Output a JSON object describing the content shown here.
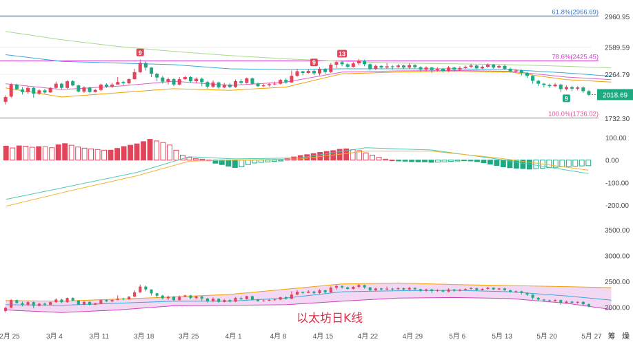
{
  "chart_data": [
    {
      "type": "candlestick",
      "xlabel": "",
      "ylabel": "",
      "x_ticks": [
        "2月 25",
        "3月 4",
        "3月 11",
        "3月 18",
        "3月 25",
        "4月 1",
        "4月 8",
        "4月 15",
        "4月 22",
        "4月 29",
        "5月 6",
        "5月 13",
        "5月 20",
        "5月 27"
      ],
      "y_ticks": [
        "2960.95",
        "2589.59",
        "2264.79",
        "2018.69",
        "1732.30"
      ],
      "ylim": [
        1732.3,
        2960.95
      ],
      "current_price_label": "2018.69",
      "fib_levels": [
        {
          "label": "61.8%(2966.69)",
          "value": 2966.69,
          "color": "#3a78c9"
        },
        {
          "label": "78.6%(2425.45)",
          "value": 2425.45,
          "color": "#d23ad2"
        },
        {
          "label": "100.0%(1736.02)",
          "value": 1736.02,
          "color": "#e0509a"
        }
      ],
      "markers": [
        {
          "text": "9",
          "index": 24,
          "position": "above",
          "color": "#e2445a"
        },
        {
          "text": "9",
          "index": 55,
          "position": "above",
          "color": "#e2445a"
        },
        {
          "text": "13",
          "index": 60,
          "position": "above",
          "color": "#e2445a"
        },
        {
          "text": "9",
          "index": 100,
          "position": "below",
          "color": "#1ea982"
        }
      ],
      "moving_averages": [
        {
          "color": "#f2a000",
          "points": [
            [
              0,
              2100
            ],
            [
              10,
              1990
            ],
            [
              20,
              2040
            ],
            [
              30,
              2090
            ],
            [
              40,
              2070
            ],
            [
              50,
              2110
            ],
            [
              60,
              2270
            ],
            [
              70,
              2290
            ],
            [
              80,
              2300
            ],
            [
              90,
              2290
            ],
            [
              100,
              2200
            ],
            [
              108,
              2170
            ]
          ]
        },
        {
          "color": "#e060c8",
          "points": [
            [
              0,
              2150
            ],
            [
              10,
              2080
            ],
            [
              20,
              2120
            ],
            [
              30,
              2180
            ],
            [
              40,
              2130
            ],
            [
              50,
              2170
            ],
            [
              60,
              2290
            ],
            [
              70,
              2305
            ],
            [
              80,
              2310
            ],
            [
              90,
              2300
            ],
            [
              100,
              2230
            ],
            [
              108,
              2200
            ]
          ]
        },
        {
          "color": "#3aa8d8",
          "points": [
            [
              0,
              2500
            ],
            [
              10,
              2420
            ],
            [
              20,
              2400
            ],
            [
              30,
              2380
            ],
            [
              40,
              2330
            ],
            [
              50,
              2320
            ],
            [
              60,
              2330
            ],
            [
              70,
              2330
            ],
            [
              80,
              2330
            ],
            [
              90,
              2320
            ],
            [
              100,
              2280
            ],
            [
              108,
              2240
            ]
          ]
        },
        {
          "color": "#a8d88a",
          "points": [
            [
              0,
              2780
            ],
            [
              10,
              2680
            ],
            [
              20,
              2600
            ],
            [
              30,
              2540
            ],
            [
              40,
              2490
            ],
            [
              50,
              2450
            ],
            [
              60,
              2420
            ],
            [
              70,
              2400
            ],
            [
              80,
              2390
            ],
            [
              90,
              2380
            ],
            [
              100,
              2360
            ],
            [
              108,
              2340
            ]
          ]
        }
      ],
      "ohlc": [
        [
          1930,
          1990,
          2010,
          1900
        ],
        [
          1995,
          2140,
          2160,
          1980
        ],
        [
          2140,
          2085,
          2150,
          2070
        ],
        [
          2080,
          2050,
          2110,
          2020
        ],
        [
          2050,
          2100,
          2120,
          2030
        ],
        [
          2100,
          2030,
          2110,
          1980
        ],
        [
          2030,
          2070,
          2085,
          2015
        ],
        [
          2070,
          2045,
          2090,
          2030
        ],
        [
          2045,
          2100,
          2110,
          2040
        ],
        [
          2100,
          2150,
          2175,
          2090
        ],
        [
          2150,
          2100,
          2160,
          2080
        ],
        [
          2100,
          2180,
          2190,
          2090
        ],
        [
          2180,
          2130,
          2195,
          2120
        ],
        [
          2130,
          2055,
          2140,
          2045
        ],
        [
          2055,
          2105,
          2120,
          2040
        ],
        [
          2105,
          2050,
          2115,
          2035
        ],
        [
          2050,
          2075,
          2090,
          2045
        ],
        [
          2075,
          2140,
          2150,
          2060
        ],
        [
          2140,
          2115,
          2155,
          2100
        ],
        [
          2115,
          2140,
          2160,
          2100
        ],
        [
          2140,
          2170,
          2230,
          2140
        ],
        [
          2170,
          2155,
          2185,
          2135
        ],
        [
          2155,
          2205,
          2215,
          2145
        ],
        [
          2205,
          2290,
          2330,
          2200
        ],
        [
          2290,
          2400,
          2440,
          2280
        ],
        [
          2400,
          2345,
          2420,
          2310
        ],
        [
          2345,
          2270,
          2350,
          2230
        ],
        [
          2270,
          2225,
          2280,
          2180
        ],
        [
          2225,
          2175,
          2245,
          2150
        ],
        [
          2175,
          2205,
          2225,
          2140
        ],
        [
          2205,
          2140,
          2220,
          2120
        ],
        [
          2140,
          2205,
          2230,
          2130
        ],
        [
          2205,
          2230,
          2245,
          2195
        ],
        [
          2230,
          2180,
          2240,
          2160
        ],
        [
          2180,
          2210,
          2225,
          2160
        ],
        [
          2210,
          2170,
          2225,
          2120
        ],
        [
          2170,
          2115,
          2185,
          2090
        ],
        [
          2115,
          2165,
          2190,
          2100
        ],
        [
          2165,
          2105,
          2175,
          2090
        ],
        [
          2105,
          2140,
          2160,
          2095
        ],
        [
          2140,
          2110,
          2160,
          2095
        ],
        [
          2110,
          2180,
          2200,
          2100
        ],
        [
          2180,
          2160,
          2205,
          2140
        ],
        [
          2160,
          2215,
          2225,
          2145
        ],
        [
          2215,
          2150,
          2225,
          2135
        ],
        [
          2150,
          2120,
          2165,
          2110
        ],
        [
          2120,
          2130,
          2150,
          2110
        ],
        [
          2130,
          2145,
          2160,
          2115
        ],
        [
          2145,
          2150,
          2175,
          2130
        ],
        [
          2150,
          2195,
          2205,
          2140
        ],
        [
          2195,
          2165,
          2215,
          2150
        ],
        [
          2165,
          2245,
          2310,
          2160
        ],
        [
          2245,
          2300,
          2330,
          2235
        ],
        [
          2300,
          2280,
          2305,
          2250
        ],
        [
          2280,
          2305,
          2330,
          2270
        ],
        [
          2305,
          2275,
          2320,
          2255
        ],
        [
          2275,
          2330,
          2350,
          2250
        ],
        [
          2330,
          2290,
          2340,
          2270
        ],
        [
          2290,
          2380,
          2400,
          2280
        ],
        [
          2380,
          2410,
          2430,
          2340
        ],
        [
          2410,
          2385,
          2425,
          2360
        ],
        [
          2385,
          2355,
          2400,
          2340
        ],
        [
          2355,
          2395,
          2410,
          2345
        ],
        [
          2395,
          2430,
          2450,
          2375
        ],
        [
          2430,
          2385,
          2440,
          2360
        ],
        [
          2385,
          2330,
          2395,
          2310
        ],
        [
          2330,
          2365,
          2380,
          2315
        ],
        [
          2365,
          2345,
          2375,
          2325
        ],
        [
          2345,
          2360,
          2400,
          2330
        ],
        [
          2360,
          2350,
          2375,
          2320
        ],
        [
          2350,
          2370,
          2385,
          2340
        ],
        [
          2370,
          2345,
          2380,
          2325
        ],
        [
          2345,
          2375,
          2395,
          2330
        ],
        [
          2375,
          2350,
          2385,
          2330
        ],
        [
          2350,
          2320,
          2360,
          2295
        ],
        [
          2320,
          2345,
          2360,
          2300
        ],
        [
          2345,
          2315,
          2355,
          2280
        ],
        [
          2315,
          2330,
          2350,
          2300
        ],
        [
          2330,
          2305,
          2340,
          2285
        ],
        [
          2305,
          2345,
          2365,
          2290
        ],
        [
          2345,
          2320,
          2355,
          2300
        ],
        [
          2320,
          2340,
          2360,
          2305
        ],
        [
          2340,
          2355,
          2370,
          2325
        ],
        [
          2355,
          2370,
          2390,
          2340
        ],
        [
          2370,
          2335,
          2380,
          2320
        ],
        [
          2335,
          2355,
          2370,
          2325
        ],
        [
          2355,
          2380,
          2395,
          2340
        ],
        [
          2380,
          2345,
          2385,
          2330
        ],
        [
          2345,
          2365,
          2375,
          2335
        ],
        [
          2365,
          2330,
          2380,
          2315
        ],
        [
          2330,
          2300,
          2345,
          2285
        ],
        [
          2300,
          2310,
          2325,
          2280
        ],
        [
          2310,
          2280,
          2320,
          2250
        ],
        [
          2280,
          2245,
          2290,
          2220
        ],
        [
          2245,
          2185,
          2250,
          2150
        ],
        [
          2185,
          2150,
          2195,
          2120
        ],
        [
          2150,
          2135,
          2160,
          2105
        ],
        [
          2135,
          2120,
          2150,
          2100
        ],
        [
          2120,
          2140,
          2160,
          2110
        ],
        [
          2140,
          2085,
          2150,
          2050
        ],
        [
          2085,
          2110,
          2130,
          2070
        ],
        [
          2110,
          2090,
          2125,
          2060
        ],
        [
          2090,
          2105,
          2120,
          2070
        ],
        [
          2105,
          2060,
          2120,
          2040
        ],
        [
          2060,
          2018,
          2075,
          2000
        ]
      ]
    },
    {
      "type": "bar",
      "y_ticks": [
        "100.00",
        "0.00",
        "-100.00",
        "-200.00"
      ],
      "ylim": [
        -200,
        100
      ],
      "values": [
        62,
        54,
        63,
        62,
        57,
        60,
        59,
        55,
        68,
        73,
        66,
        58,
        53,
        50,
        47,
        44,
        44,
        52,
        60,
        66,
        72,
        82,
        92,
        85,
        78,
        67,
        44,
        22,
        12,
        6,
        4,
        0,
        -14,
        -20,
        -27,
        -33,
        -30,
        -20,
        -13,
        -10,
        -8,
        -6,
        -4,
        6,
        14,
        20,
        24,
        29,
        34,
        38,
        42,
        48,
        50,
        46,
        42,
        32,
        22,
        12,
        4,
        0,
        -4,
        -5,
        -7,
        -8,
        -8,
        -10,
        -9,
        -8,
        -6,
        -4,
        -2,
        -4,
        -7,
        -12,
        -18,
        -24,
        -30,
        -34,
        -36,
        -38,
        -40,
        -38,
        -36,
        -34,
        -32,
        -30,
        -28,
        -27,
        -26,
        -25
      ],
      "lines": [
        {
          "color": "#4fc9b4",
          "points": [
            [
              0,
              -175
            ],
            [
              10,
              -115
            ],
            [
              20,
              -55
            ],
            [
              28,
              15
            ],
            [
              35,
              5
            ],
            [
              45,
              10
            ],
            [
              55,
              55
            ],
            [
              65,
              45
            ],
            [
              75,
              5
            ],
            [
              89,
              -60
            ]
          ]
        },
        {
          "color": "#f2b330",
          "points": [
            [
              0,
              -205
            ],
            [
              10,
              -135
            ],
            [
              20,
              -70
            ],
            [
              28,
              -5
            ],
            [
              35,
              0
            ],
            [
              45,
              5
            ],
            [
              55,
              40
            ],
            [
              65,
              40
            ],
            [
              75,
              10
            ],
            [
              89,
              -45
            ]
          ]
        }
      ]
    },
    {
      "type": "candlestick",
      "y_ticks": [
        "3500.00",
        "3000.00",
        "2500.00",
        "2000.00"
      ],
      "ylim": [
        1850,
        3550
      ],
      "caption": "以太坊日K线",
      "band_upper": [
        [
          0,
          2130
        ],
        [
          10,
          2120
        ],
        [
          20,
          2160
        ],
        [
          30,
          2200
        ],
        [
          40,
          2250
        ],
        [
          50,
          2350
        ],
        [
          60,
          2450
        ],
        [
          70,
          2470
        ],
        [
          80,
          2440
        ],
        [
          90,
          2420
        ],
        [
          100,
          2400
        ],
        [
          108,
          2380
        ]
      ],
      "band_lower": [
        [
          0,
          1950
        ],
        [
          10,
          1900
        ],
        [
          20,
          1950
        ],
        [
          30,
          2030
        ],
        [
          40,
          2040
        ],
        [
          50,
          2050
        ],
        [
          60,
          2120
        ],
        [
          70,
          2180
        ],
        [
          80,
          2190
        ],
        [
          90,
          2170
        ],
        [
          100,
          2080
        ],
        [
          108,
          1960
        ]
      ],
      "band_mid": [
        [
          0,
          2050
        ],
        [
          10,
          2040
        ],
        [
          20,
          2080
        ],
        [
          30,
          2120
        ],
        [
          40,
          2120
        ],
        [
          50,
          2180
        ],
        [
          60,
          2300
        ],
        [
          70,
          2320
        ],
        [
          80,
          2330
        ],
        [
          90,
          2300
        ],
        [
          100,
          2220
        ],
        [
          108,
          2140
        ]
      ]
    }
  ],
  "watermark": "筹 燥"
}
